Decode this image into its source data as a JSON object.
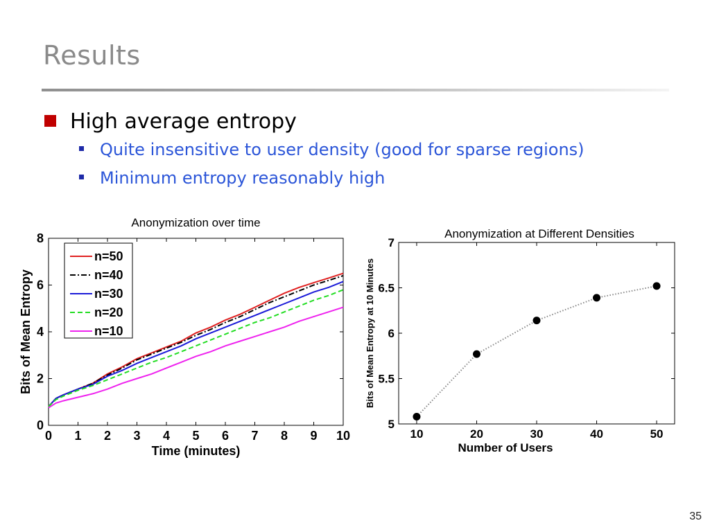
{
  "slide": {
    "title": "Results",
    "bullet": "High average entropy",
    "subbullets": [
      "Quite insensitive to user density (good for sparse regions)",
      "Minimum entropy reasonably high"
    ],
    "page_number": "35"
  },
  "colors": {
    "accent_bullet": "#c00000",
    "sub_text": "#2b55d8",
    "title": "#8a8a8a"
  },
  "chart_data": [
    {
      "type": "line",
      "title": "Anonymization over time",
      "xlabel": "Time (minutes)",
      "ylabel": "Bits of Mean Entropy",
      "xlim": [
        0,
        10
      ],
      "ylim": [
        0,
        8
      ],
      "xticks": [
        "0",
        "1",
        "2",
        "3",
        "4",
        "5",
        "6",
        "7",
        "8",
        "9",
        "10"
      ],
      "yticks": [
        "0",
        "2",
        "4",
        "6",
        "8"
      ],
      "legend_position": "top-left",
      "x": [
        0,
        0.25,
        0.5,
        1,
        1.5,
        2,
        2.5,
        3,
        3.5,
        4,
        4.5,
        5,
        5.5,
        6,
        6.5,
        7,
        7.5,
        8,
        8.5,
        9,
        9.5,
        10
      ],
      "series": [
        {
          "name": "n=50",
          "color": "#e02020",
          "dash": "solid",
          "values": [
            0.8,
            1.15,
            1.3,
            1.55,
            1.8,
            2.2,
            2.5,
            2.85,
            3.1,
            3.35,
            3.6,
            3.95,
            4.2,
            4.5,
            4.75,
            5.05,
            5.35,
            5.65,
            5.9,
            6.1,
            6.3,
            6.5
          ]
        },
        {
          "name": "n=40",
          "color": "#000000",
          "dash": "dashdot",
          "values": [
            0.8,
            1.15,
            1.3,
            1.55,
            1.8,
            2.15,
            2.45,
            2.8,
            3.05,
            3.3,
            3.55,
            3.85,
            4.1,
            4.4,
            4.65,
            4.95,
            5.25,
            5.5,
            5.75,
            6.0,
            6.2,
            6.4
          ]
        },
        {
          "name": "n=30",
          "color": "#1a1ad8",
          "dash": "solid",
          "values": [
            0.8,
            1.15,
            1.3,
            1.55,
            1.75,
            2.1,
            2.35,
            2.65,
            2.9,
            3.15,
            3.4,
            3.7,
            3.95,
            4.2,
            4.45,
            4.7,
            4.95,
            5.2,
            5.45,
            5.7,
            5.9,
            6.15
          ]
        },
        {
          "name": "n=20",
          "color": "#22dd22",
          "dash": "dashed",
          "values": [
            0.8,
            1.1,
            1.25,
            1.5,
            1.7,
            1.95,
            2.2,
            2.45,
            2.7,
            2.9,
            3.15,
            3.4,
            3.65,
            3.9,
            4.15,
            4.4,
            4.6,
            4.85,
            5.1,
            5.35,
            5.55,
            5.8
          ]
        },
        {
          "name": "n=10",
          "color": "#ee22ee",
          "dash": "solid",
          "values": [
            0.75,
            0.95,
            1.05,
            1.2,
            1.35,
            1.55,
            1.8,
            2.0,
            2.2,
            2.45,
            2.7,
            2.95,
            3.15,
            3.4,
            3.6,
            3.8,
            4.0,
            4.2,
            4.45,
            4.65,
            4.85,
            5.05
          ]
        }
      ]
    },
    {
      "type": "scatter",
      "title": "Anonymization at Different Densities",
      "xlabel": "Number of Users",
      "ylabel": "Bits of Mean Entropy at 10 Minutes",
      "xlim": [
        7,
        53
      ],
      "ylim": [
        5,
        7
      ],
      "xticks": [
        "10",
        "20",
        "30",
        "40",
        "50"
      ],
      "yticks": [
        "5",
        "5.5",
        "6",
        "6.5",
        "7"
      ],
      "connector": "dotted",
      "x": [
        10,
        20,
        30,
        40,
        50
      ],
      "values": [
        5.08,
        5.77,
        6.14,
        6.39,
        6.52
      ]
    }
  ]
}
